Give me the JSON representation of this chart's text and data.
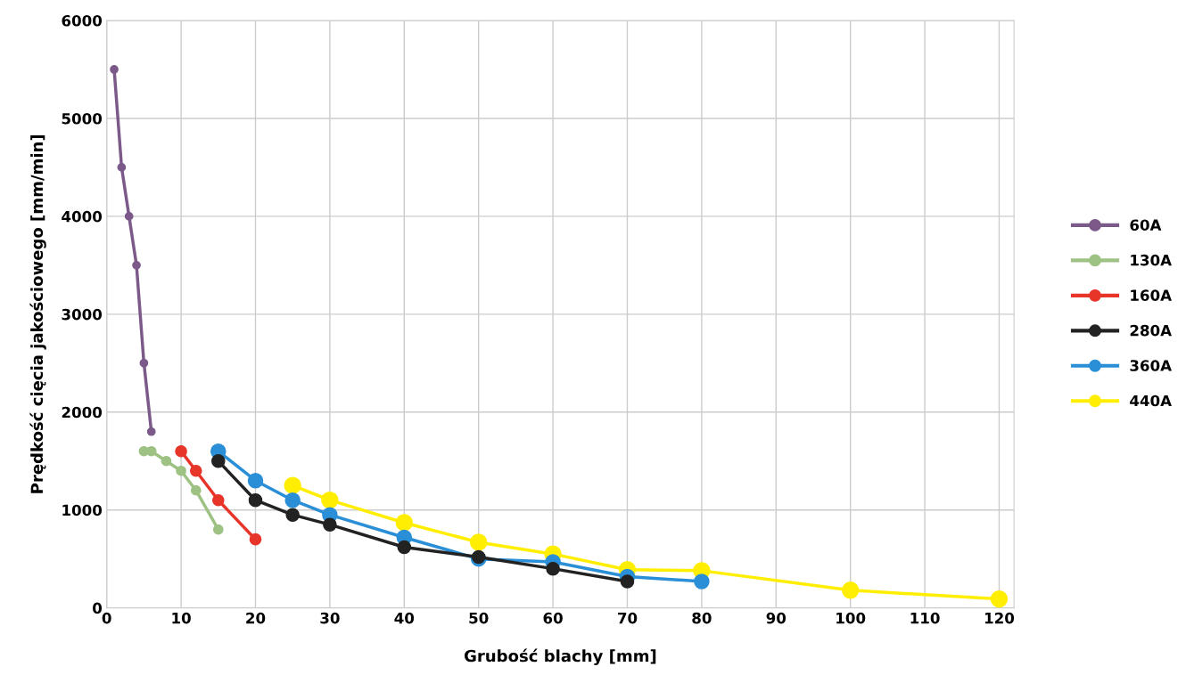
{
  "chart_data": {
    "type": "line",
    "xlabel": "Grubość blachy [mm]",
    "ylabel": "Prędkość cięcia jakościowego [mm/min]",
    "xlim": [
      0,
      122
    ],
    "ylim": [
      0,
      6000
    ],
    "xticks": [
      0,
      10,
      20,
      30,
      40,
      50,
      60,
      70,
      80,
      90,
      100,
      110,
      120
    ],
    "yticks": [
      0,
      1000,
      2000,
      3000,
      4000,
      5000,
      6000
    ],
    "grid": true,
    "legend": "right",
    "marker": "circle",
    "line_style": "solid",
    "series": [
      {
        "name": "60A",
        "color": "#7b5a8a",
        "x": [
          1,
          2,
          3,
          4,
          5,
          6
        ],
        "values": [
          5500,
          4500,
          4000,
          3500,
          2500,
          1800
        ]
      },
      {
        "name": "130A",
        "color": "#9dc283",
        "x": [
          5,
          6,
          8,
          10,
          12,
          15
        ],
        "values": [
          1600,
          1600,
          1500,
          1400,
          1200,
          800
        ]
      },
      {
        "name": "160A",
        "color": "#e8352a",
        "x": [
          10,
          12,
          15,
          20
        ],
        "values": [
          1600,
          1400,
          1100,
          700
        ]
      },
      {
        "name": "280A",
        "color": "#222222",
        "x": [
          15,
          20,
          25,
          30,
          40,
          50,
          60,
          70
        ],
        "values": [
          1500,
          1100,
          950,
          850,
          620,
          520,
          400,
          270
        ]
      },
      {
        "name": "360A",
        "color": "#2a8fd6",
        "x": [
          15,
          20,
          25,
          30,
          40,
          50,
          60,
          70,
          80
        ],
        "values": [
          1600,
          1300,
          1100,
          950,
          720,
          500,
          470,
          320,
          270
        ]
      },
      {
        "name": "440A",
        "color": "#ffee00",
        "x": [
          25,
          30,
          40,
          50,
          60,
          70,
          80,
          100,
          120
        ],
        "values": [
          1250,
          1100,
          870,
          670,
          550,
          390,
          380,
          180,
          90
        ]
      }
    ]
  }
}
